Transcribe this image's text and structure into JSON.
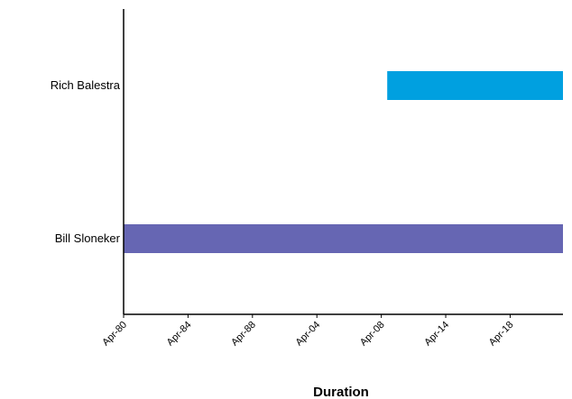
{
  "chart_data": {
    "type": "bar",
    "orientation": "horizontal",
    "categories": [
      "Rich Balestra",
      "Bill Sloneker"
    ],
    "x_ticks": [
      "Apr-80",
      "Apr-84",
      "Apr-88",
      "Apr-04",
      "Apr-08",
      "Apr-14",
      "Apr-18"
    ],
    "xlabel": "Duration",
    "ylabel": "",
    "title": "",
    "series": [
      {
        "values": [
          {
            "category": "Rich Balestra",
            "start": 4.2,
            "end": 7.0
          },
          {
            "category": "Bill Sloneker",
            "start": 0.0,
            "end": 7.0
          }
        ]
      }
    ],
    "xlim": [
      0,
      7
    ],
    "colors": {
      "Rich Balestra": "#00a0e0",
      "Bill Sloneker": "#6666b3"
    },
    "grid": false,
    "legend": "none"
  }
}
